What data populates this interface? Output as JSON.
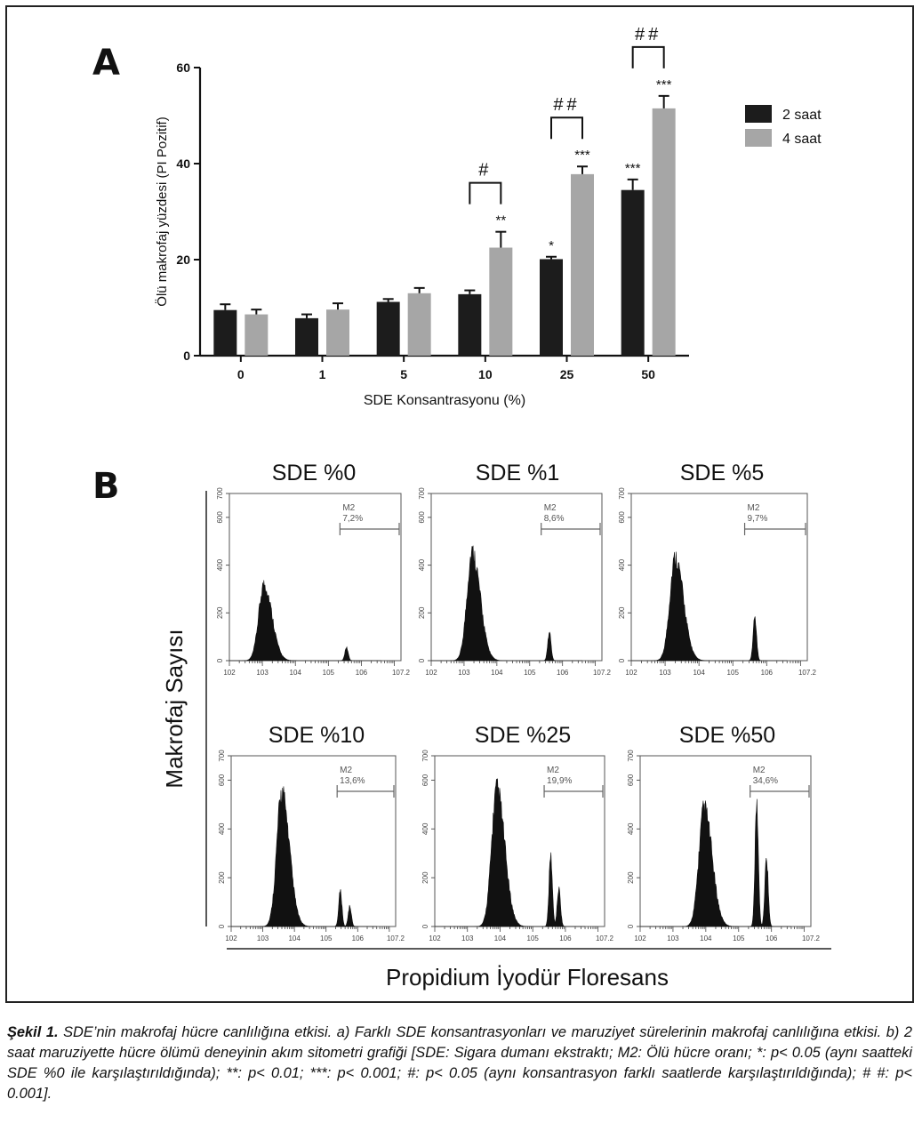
{
  "chart_data": [
    {
      "type": "bar",
      "panel_letter": "A",
      "categories": [
        "0",
        "1",
        "5",
        "10",
        "25",
        "50"
      ],
      "series": [
        {
          "name": "2 saat",
          "color": "#1c1c1c",
          "values": [
            9.5,
            7.8,
            11.2,
            12.8,
            20.1,
            34.5
          ],
          "errors": [
            1.2,
            0.8,
            0.6,
            0.8,
            0.5,
            2.2
          ],
          "significance": [
            "",
            "",
            "",
            "",
            "*",
            "***"
          ]
        },
        {
          "name": "4 saat",
          "color": "#a6a6a6",
          "values": [
            8.6,
            9.6,
            13.0,
            22.5,
            37.8,
            51.5
          ],
          "errors": [
            1.0,
            1.3,
            1.1,
            3.3,
            1.6,
            2.6
          ],
          "significance": [
            "",
            "",
            "",
            "**",
            "***",
            "***"
          ]
        }
      ],
      "group_brackets": [
        {
          "category": "10",
          "label": "#"
        },
        {
          "category": "25",
          "label": "##"
        },
        {
          "category": "50",
          "label": "##"
        }
      ],
      "xlabel": "SDE Konsantrasyonu (%)",
      "ylabel": "Ölü makrofaj yüzdesi (PI Pozitif)",
      "ylim": [
        0,
        60
      ],
      "yticks": [
        "0",
        "20",
        "40",
        "60"
      ],
      "legend_position": "right",
      "grid": false
    },
    {
      "type": "histogram",
      "panel_letter": "B",
      "ylabel": "Makrofaj Sayısı",
      "xlabel": "Propidium İyodür Floresans",
      "gate_label": "M2",
      "yticks": [
        "0",
        "200",
        "400",
        "600",
        "700"
      ],
      "yrange": [
        0,
        700
      ],
      "xtick_labels": [
        "10^2",
        "10^3",
        "10^4",
        "10^5",
        "10^6",
        "10^7.2"
      ],
      "panels": [
        {
          "title": "SDE %0",
          "gate_percent": "7,2%",
          "main_peak": {
            "log_center": 3.05,
            "height": 350
          },
          "dead_peaks": [
            {
              "log_center": 5.55,
              "height": 60
            }
          ]
        },
        {
          "title": "SDE %1",
          "gate_percent": "8,6%",
          "main_peak": {
            "log_center": 3.25,
            "height": 500
          },
          "dead_peaks": [
            {
              "log_center": 5.6,
              "height": 130
            }
          ]
        },
        {
          "title": "SDE %5",
          "gate_percent": "9,7%",
          "main_peak": {
            "log_center": 3.3,
            "height": 475
          },
          "dead_peaks": [
            {
              "log_center": 5.65,
              "height": 200
            }
          ]
        },
        {
          "title": "SDE %10",
          "gate_percent": "13,6%",
          "main_peak": {
            "log_center": 3.6,
            "height": 600
          },
          "dead_peaks": [
            {
              "log_center": 5.45,
              "height": 160
            },
            {
              "log_center": 5.75,
              "height": 90
            }
          ]
        },
        {
          "title": "SDE %25",
          "gate_percent": "19,9%",
          "main_peak": {
            "log_center": 3.9,
            "height": 615
          },
          "dead_peaks": [
            {
              "log_center": 5.55,
              "height": 320
            },
            {
              "log_center": 5.8,
              "height": 170
            }
          ]
        },
        {
          "title": "SDE %50",
          "gate_percent": "34,6%",
          "main_peak": {
            "log_center": 3.95,
            "height": 530
          },
          "dead_peaks": [
            {
              "log_center": 5.55,
              "height": 550
            },
            {
              "log_center": 5.85,
              "height": 310
            }
          ]
        }
      ]
    }
  ],
  "caption": {
    "label": "Şekil 1.",
    "text": "SDE’nin makrofaj hücre canlılığına etkisi. a) Farklı SDE konsantrasyonları ve maruziyet sürelerinin makrofaj canlılığına etkisi. b) 2 saat maruziyette hücre ölümü deneyinin akım sitometri grafiği [SDE: Sigara dumanı ekstraktı; M2: Ölü hücre oranı; *: p< 0.05 (aynı saatteki SDE %0 ile karşılaştırıldığında); **: p< 0.01; ***: p< 0.001; #: p< 0.05 (aynı konsantrasyon farklı saatlerde karşılaştırıldığında); # #: p< 0.001]."
  }
}
